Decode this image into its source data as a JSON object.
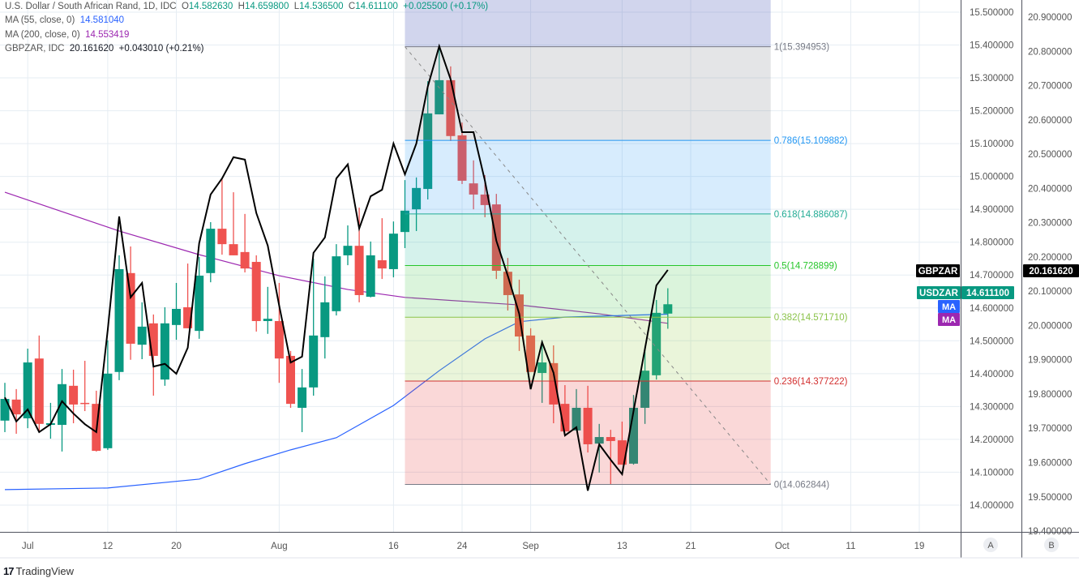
{
  "legend": {
    "title": "U.S. Dollar / South African Rand, 1D, IDC",
    "o_label": "O",
    "o": "14.582630",
    "h_label": "H",
    "h": "14.659800",
    "l_label": "L",
    "l": "14.536500",
    "c_label": "C",
    "c": "14.611100",
    "change": "+0.025500 (+0.17%)",
    "ma55_label": "MA (55, close, 0)",
    "ma55_value": "14.581040",
    "ma200_label": "MA (200, close, 0)",
    "ma200_value": "14.553419",
    "compare_label": "GBPZAR, IDC",
    "compare_value": "20.161620",
    "compare_change": "+0.043010 (+0.21%)"
  },
  "colors": {
    "up": "#089981",
    "down": "#ef5350",
    "ma55": "#2962ff",
    "ma200": "#9c27b0",
    "compare": "#000000"
  },
  "tags": {
    "gbpzar_label": "GBPZAR",
    "gbpzar_value": "20.161620",
    "usdzar_label": "USDZAR",
    "usdzar_value": "14.611100",
    "ma_label_1": "MA",
    "ma_label_2": "MA"
  },
  "scale_buttons": {
    "left": "A",
    "right": "B"
  },
  "footer": {
    "brand": "TradingView"
  },
  "chart_data": {
    "type": "candlestick",
    "title": "U.S. Dollar / South African Rand, 1D, IDC",
    "left_axis": {
      "ticks": [
        "15.500000",
        "15.400000",
        "15.300000",
        "15.200000",
        "15.100000",
        "15.000000",
        "14.900000",
        "14.800000",
        "14.700000",
        "14.600000",
        "14.500000",
        "14.400000",
        "14.300000",
        "14.200000",
        "14.100000",
        "14.000000"
      ],
      "range": [
        13.95,
        15.537
      ]
    },
    "right_axis": {
      "ticks": [
        "20.900000",
        "20.800000",
        "20.700000",
        "20.600000",
        "20.500000",
        "20.400000",
        "20.300000",
        "20.200000",
        "20.100000",
        "20.000000",
        "19.900000",
        "19.800000",
        "19.700000",
        "19.600000",
        "19.500000",
        "19.400000"
      ],
      "range": [
        19.38,
        20.95
      ]
    },
    "x_ticks": [
      {
        "label": "Jul",
        "date": "07-01"
      },
      {
        "label": "12",
        "date": "07-12"
      },
      {
        "label": "20",
        "date": "07-20"
      },
      {
        "label": "Aug",
        "date": "08-02"
      },
      {
        "label": "16",
        "date": "08-16"
      },
      {
        "label": "24",
        "date": "08-24"
      },
      {
        "label": "Sep",
        "date": "09-01"
      },
      {
        "label": "13",
        "date": "09-13"
      },
      {
        "label": "21",
        "date": "09-21"
      },
      {
        "label": "Oct",
        "date": "10-01"
      },
      {
        "label": "11",
        "date": "10-11"
      },
      {
        "label": "19",
        "date": "10-19"
      }
    ],
    "grid": true,
    "candles_fields": [
      "date",
      "open",
      "high",
      "low",
      "close"
    ],
    "candles": [
      [
        "06-29",
        14.257,
        14.372,
        14.222,
        14.323
      ],
      [
        "06-30",
        14.321,
        14.353,
        14.217,
        14.276
      ],
      [
        "07-01",
        14.264,
        14.476,
        14.234,
        14.434
      ],
      [
        "07-02",
        14.446,
        14.516,
        14.222,
        14.247
      ],
      [
        "07-05",
        14.244,
        14.311,
        14.202,
        14.249
      ],
      [
        "07-06",
        14.244,
        14.414,
        14.163,
        14.368
      ],
      [
        "07-07",
        14.363,
        14.412,
        14.249,
        14.306
      ],
      [
        "07-08",
        14.311,
        14.439,
        14.286,
        14.31
      ],
      [
        "07-09",
        14.308,
        14.348,
        14.163,
        14.165
      ],
      [
        "07-12",
        14.173,
        14.501,
        14.168,
        14.4
      ],
      [
        "07-13",
        14.405,
        14.76,
        14.38,
        14.718
      ],
      [
        "07-14",
        14.706,
        14.787,
        14.442,
        14.491
      ],
      [
        "07-15",
        14.488,
        14.617,
        14.444,
        14.543
      ],
      [
        "07-16",
        14.553,
        14.58,
        14.333,
        14.454
      ],
      [
        "07-19",
        14.382,
        14.602,
        14.363,
        14.553
      ],
      [
        "07-20",
        14.548,
        14.676,
        14.503,
        14.597
      ],
      [
        "07-21",
        14.602,
        14.735,
        14.538,
        14.538
      ],
      [
        "07-22",
        14.53,
        14.755,
        14.506,
        14.698
      ],
      [
        "07-23",
        14.706,
        14.861,
        14.678,
        14.841
      ],
      [
        "07-26",
        14.841,
        14.994,
        14.762,
        14.794
      ],
      [
        "07-27",
        14.794,
        14.952,
        14.76,
        14.76
      ],
      [
        "07-28",
        14.77,
        14.886,
        14.708,
        14.72
      ],
      [
        "07-29",
        14.74,
        14.76,
        14.528,
        14.56
      ],
      [
        "07-30",
        14.56,
        14.664,
        14.521,
        14.567
      ],
      [
        "08-02",
        14.56,
        14.676,
        14.372,
        14.446
      ],
      [
        "08-03",
        14.454,
        14.469,
        14.296,
        14.308
      ],
      [
        "08-04",
        14.296,
        14.414,
        14.222,
        14.358
      ],
      [
        "08-05",
        14.358,
        14.75,
        14.333,
        14.516
      ],
      [
        "08-06",
        14.511,
        14.696,
        14.446,
        14.617
      ],
      [
        "08-09",
        14.59,
        14.794,
        14.577,
        14.757
      ],
      [
        "08-10",
        14.76,
        14.851,
        14.73,
        14.789
      ],
      [
        "08-11",
        14.789,
        14.905,
        14.617,
        14.639
      ],
      [
        "08-12",
        14.634,
        14.802,
        14.632,
        14.76
      ],
      [
        "08-13",
        14.745,
        14.873,
        14.688,
        14.72
      ],
      [
        "08-16",
        14.718,
        14.863,
        14.693,
        14.826
      ],
      [
        "08-17",
        14.831,
        14.989,
        14.782,
        14.896
      ],
      [
        "08-18",
        14.9,
        14.997,
        14.834,
        14.965
      ],
      [
        "08-19",
        14.962,
        15.29,
        14.93,
        15.192
      ],
      [
        "08-20",
        15.189,
        15.396,
        15.189,
        15.293
      ],
      [
        "08-23",
        15.293,
        15.335,
        15.108,
        15.123
      ],
      [
        "08-24",
        15.125,
        15.164,
        14.977,
        14.987
      ],
      [
        "08-25",
        14.979,
        15.049,
        14.9,
        14.945
      ],
      [
        "08-26",
        14.945,
        15.004,
        14.876,
        14.913
      ],
      [
        "08-27",
        14.915,
        14.947,
        14.688,
        14.713
      ],
      [
        "08-30",
        14.71,
        14.752,
        14.592,
        14.639
      ],
      [
        "08-31",
        14.641,
        14.686,
        14.469,
        14.513
      ],
      [
        "09-01",
        14.516,
        14.538,
        14.405,
        14.405
      ],
      [
        "09-02",
        14.402,
        14.501,
        14.311,
        14.434
      ],
      [
        "09-03",
        14.432,
        14.486,
        14.249,
        14.306
      ],
      [
        "09-06",
        14.308,
        14.365,
        14.224,
        14.224
      ],
      [
        "09-07",
        14.227,
        14.353,
        14.227,
        14.296
      ],
      [
        "09-08",
        14.296,
        14.363,
        14.16,
        14.185
      ],
      [
        "09-09",
        14.187,
        14.247,
        14.099,
        14.207
      ],
      [
        "09-10",
        14.207,
        14.229,
        14.062,
        14.195
      ],
      [
        "09-13",
        14.197,
        14.254,
        14.123,
        14.123
      ],
      [
        "09-14",
        14.126,
        14.335,
        14.123,
        14.296
      ],
      [
        "09-15",
        14.296,
        14.484,
        14.247,
        14.409
      ],
      [
        "09-16",
        14.395,
        14.624,
        14.382,
        14.585
      ],
      [
        "09-17",
        14.58263,
        14.6598,
        14.5365,
        14.6111
      ]
    ],
    "compare_series": {
      "name": "GBPZAR",
      "axis": "right",
      "values": [
        19.79,
        19.72,
        19.755,
        19.689,
        19.712,
        19.779,
        19.743,
        19.712,
        19.689,
        19.987,
        20.318,
        20.082,
        20.124,
        19.88,
        19.888,
        19.859,
        19.935,
        20.24,
        20.382,
        20.429,
        20.491,
        20.484,
        20.328,
        20.233,
        20.058,
        19.892,
        19.909,
        20.212,
        20.257,
        20.429,
        20.47,
        20.283,
        20.377,
        20.396,
        20.531,
        20.441,
        20.531,
        20.697,
        20.815,
        20.718,
        20.564,
        20.564,
        20.422,
        20.247,
        20.145,
        20.034,
        19.814,
        19.951,
        19.862,
        19.679,
        19.703,
        19.518,
        19.653,
        19.608,
        19.566,
        19.75,
        19.932,
        20.117,
        20.162
      ]
    },
    "ma55": [
      [
        "06-29",
        14.047
      ],
      [
        "07-12",
        14.052
      ],
      [
        "07-22",
        14.079
      ],
      [
        "07-28",
        14.126
      ],
      [
        "08-03",
        14.168
      ],
      [
        "08-09",
        14.205
      ],
      [
        "08-16",
        14.303
      ],
      [
        "08-20",
        14.409
      ],
      [
        "08-26",
        14.506
      ],
      [
        "08-31",
        14.558
      ],
      [
        "09-06",
        14.572
      ],
      [
        "09-17",
        14.581
      ]
    ],
    "ma200": [
      [
        "06-29",
        14.952
      ],
      [
        "07-13",
        14.834
      ],
      [
        "07-22",
        14.762
      ],
      [
        "08-02",
        14.698
      ],
      [
        "08-10",
        14.656
      ],
      [
        "08-17",
        14.632
      ],
      [
        "08-31",
        14.609
      ],
      [
        "09-09",
        14.582
      ],
      [
        "09-17",
        14.553
      ]
    ],
    "fibonacci": {
      "start": "08-17",
      "end": "09-30",
      "levels": [
        {
          "ratio": "1",
          "price": 15.394953,
          "label": "1(15.394953)",
          "color": "#787b86",
          "fill": "rgba(120,123,134,0.2)"
        },
        {
          "ratio": "0.786",
          "price": 15.109882,
          "label": "0.786(15.109882)",
          "color": "#2196f3",
          "fill": "rgba(33,150,243,0.18)"
        },
        {
          "ratio": "0.618",
          "price": 14.886087,
          "label": "0.618(14.886087)",
          "color": "#22ab94",
          "fill": "rgba(8,180,140,0.17)"
        },
        {
          "ratio": "0.5",
          "price": 14.728899,
          "label": "0.5(14.728899)",
          "color": "#26c62a",
          "fill": "rgba(76,200,80,0.2)"
        },
        {
          "ratio": "0.382",
          "price": 14.57171,
          "label": "0.382(14.571710)",
          "color": "#8bc34a",
          "fill": "rgba(150,205,70,0.2)"
        },
        {
          "ratio": "0.236",
          "price": 14.377222,
          "label": "0.236(14.377222)",
          "color": "#d32f2f",
          "fill": "rgba(230,60,60,0.2)"
        },
        {
          "ratio": "0",
          "price": 14.062844,
          "label": "0(14.062844)",
          "color": "#787b86",
          "fill": ""
        }
      ],
      "above_fill": "rgba(63,81,181,0.24)"
    }
  }
}
